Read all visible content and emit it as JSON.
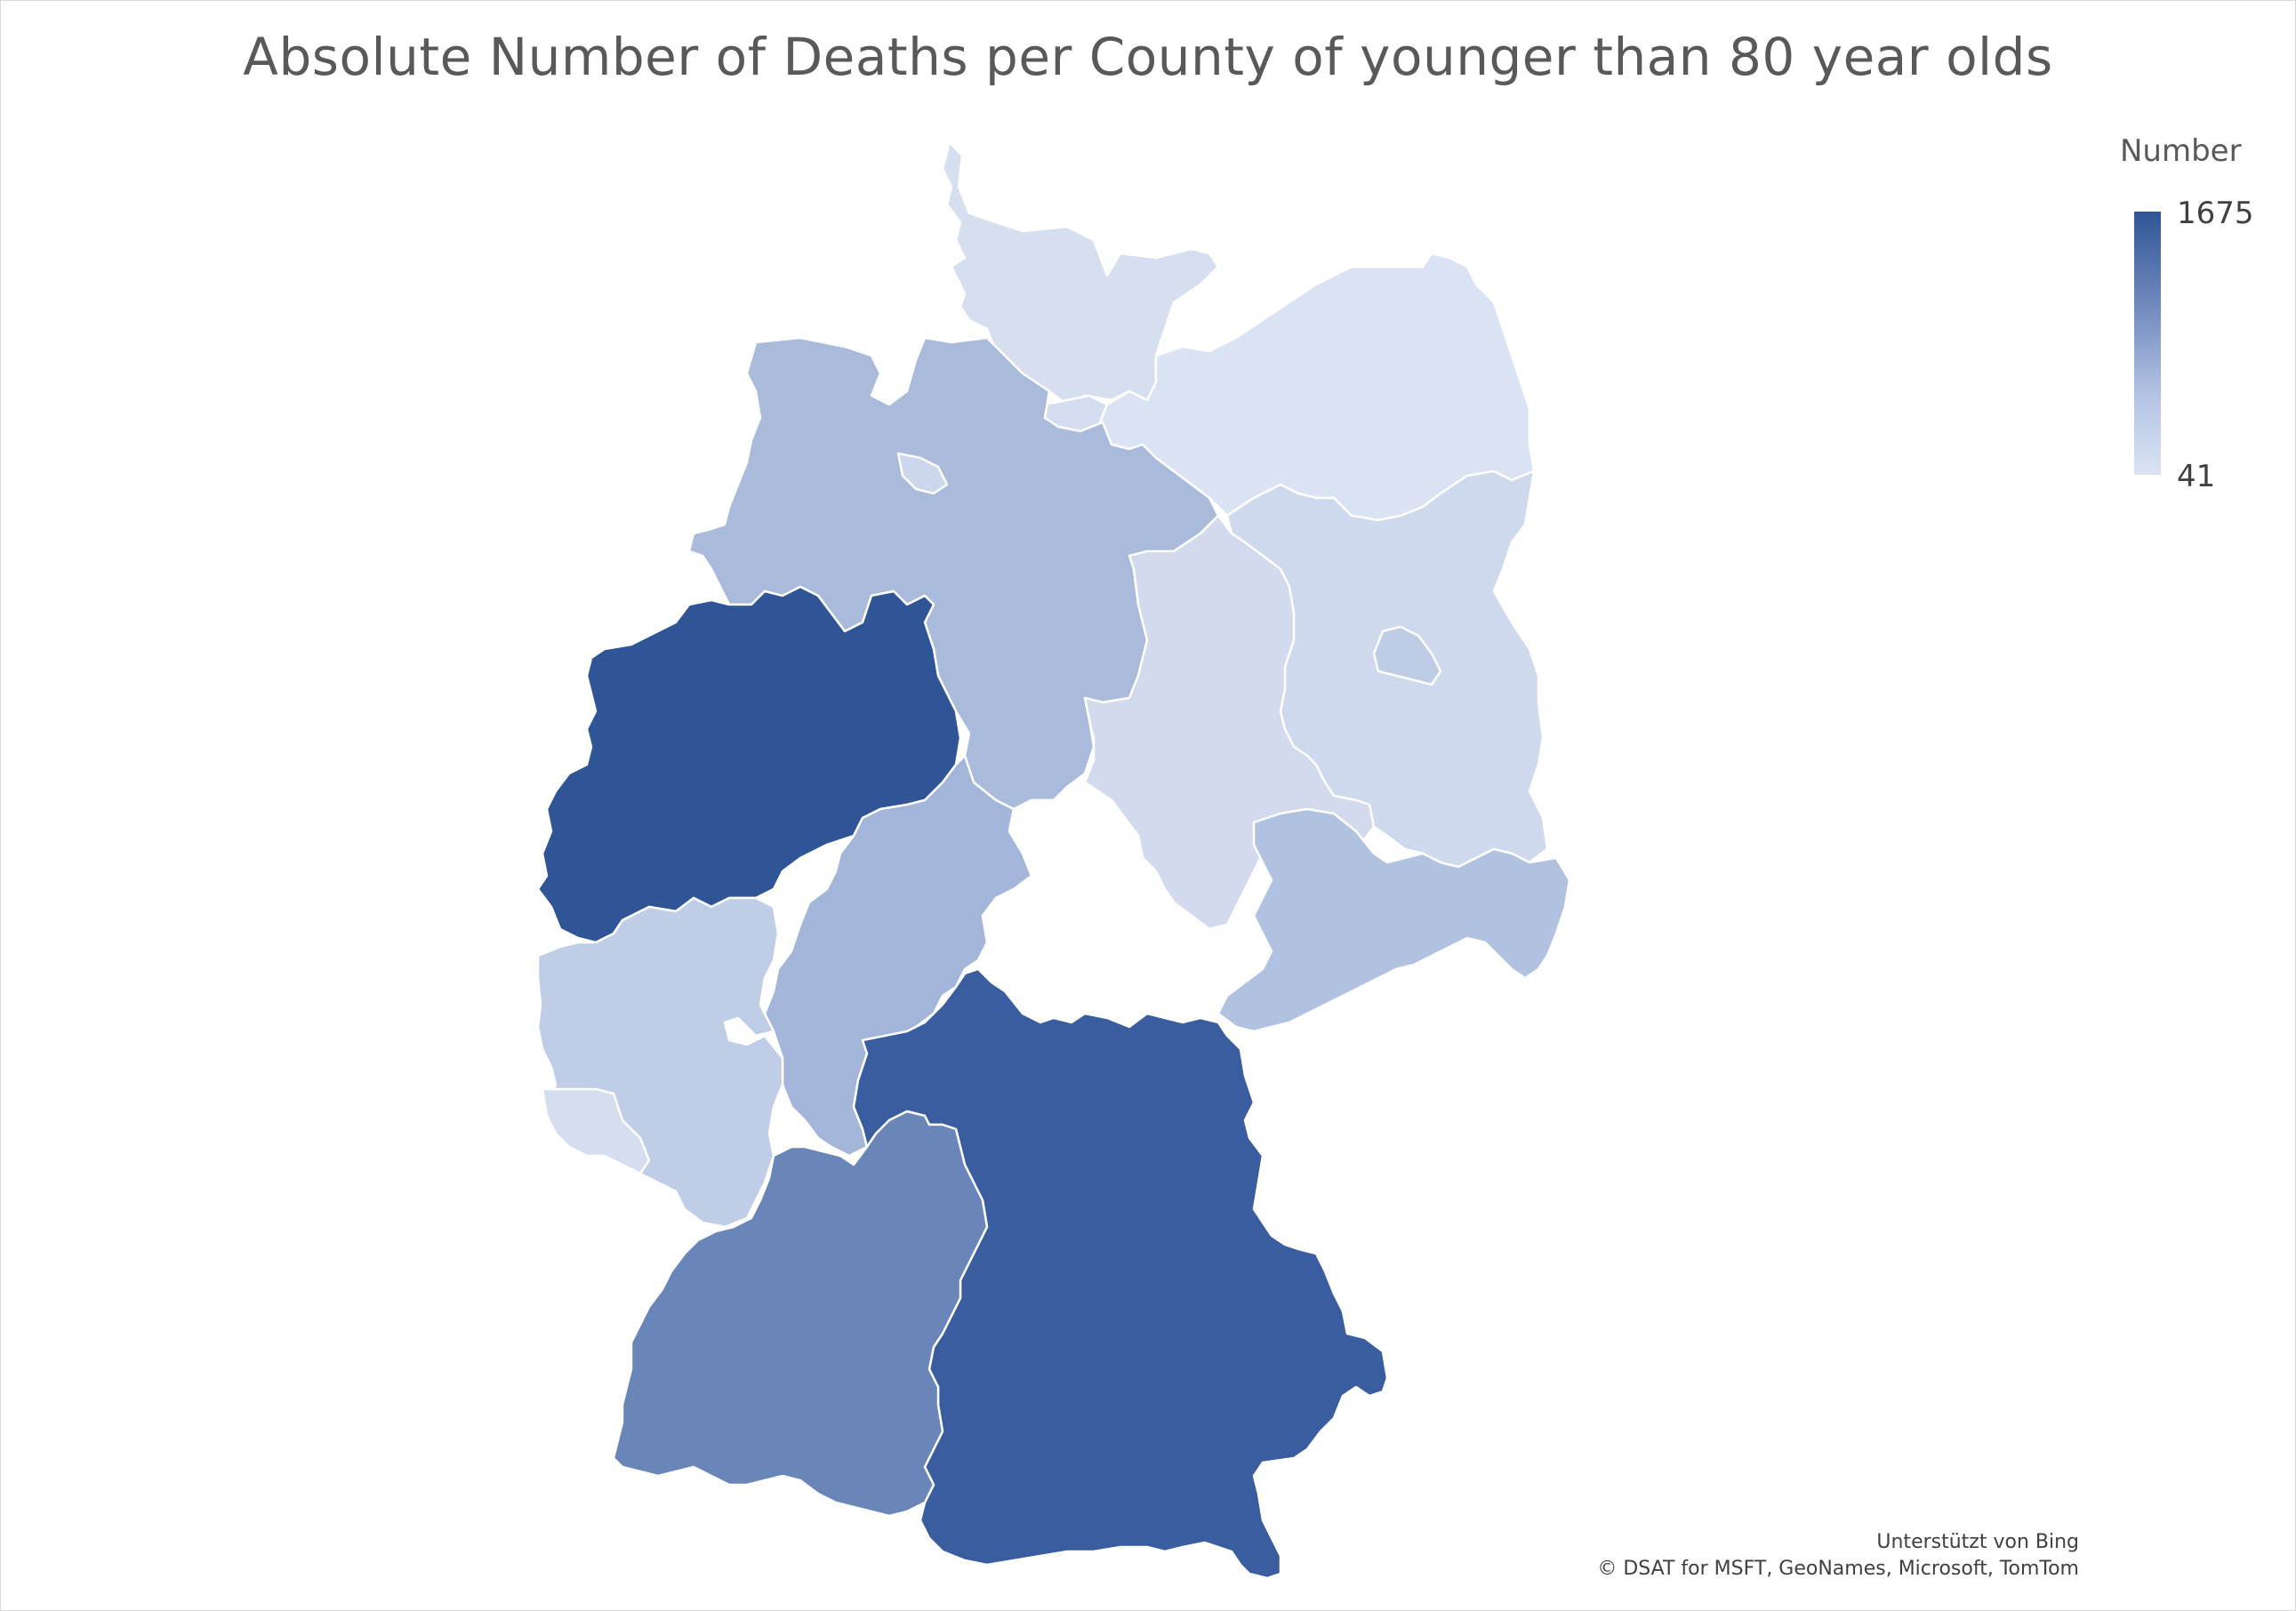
{
  "title": "Absolute Number of Deaths per County of younger than 80 year olds",
  "legend": {
    "title": "Number",
    "max_label": "1675",
    "min_label": "41",
    "max_color": "#2f5597",
    "min_color": "#dae3f3"
  },
  "attribution": {
    "line1": "Unterstützt von Bing",
    "line2": "© DSAT for MSFT, GeoNames, Microsoft, TomTom"
  },
  "regions": [
    {
      "id": "schleswig-holstein",
      "color": "#d6dff0"
    },
    {
      "id": "hamburg",
      "color": "#d4ddef"
    },
    {
      "id": "mecklenburg-vorpommern",
      "color": "#dae3f3"
    },
    {
      "id": "lower-saxony",
      "color": "#a9badb"
    },
    {
      "id": "bremen",
      "color": "#ccd6ec"
    },
    {
      "id": "berlin",
      "color": "#bfcce6"
    },
    {
      "id": "brandenburg",
      "color": "#cfd9ed"
    },
    {
      "id": "saxony-anhalt",
      "color": "#d2dbee"
    },
    {
      "id": "north-rhine-westphalia",
      "color": "#2f5597"
    },
    {
      "id": "hesse",
      "color": "#a3b5d9"
    },
    {
      "id": "thuringia",
      "color": "#ffffff"
    },
    {
      "id": "saxony",
      "color": "#b1c1e0"
    },
    {
      "id": "rhineland-palatinate",
      "color": "#c0cde7"
    },
    {
      "id": "saarland",
      "color": "#d5deef"
    },
    {
      "id": "bavaria",
      "color": "#3a5d9f"
    },
    {
      "id": "baden-wuerttemberg",
      "color": "#6a85b7"
    }
  ]
}
